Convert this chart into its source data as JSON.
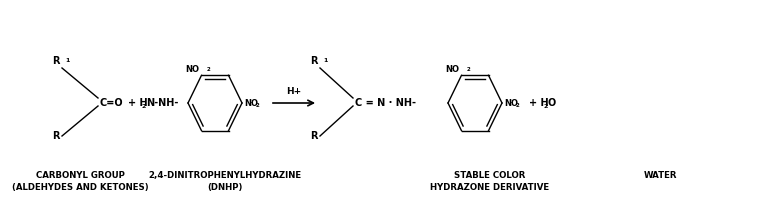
{
  "bg_color": "#ffffff",
  "fig_width": 7.6,
  "fig_height": 2.06,
  "dpi": 100,
  "label1": "CARBONYL GROUP\n(ALDEHYDES AND KETONES)",
  "label2": "2,4-DINITROPHENYLHYDRAZINE\n(DNHP)",
  "label3": "STABLE COLOR\nHYDRAZONE DERIVATIVE",
  "label4": "WATER",
  "arrow_label": "H+",
  "text_color": "#000000",
  "label_fontsize": 6.2,
  "chem_fontsize": 7.0,
  "line_color": "#000000"
}
